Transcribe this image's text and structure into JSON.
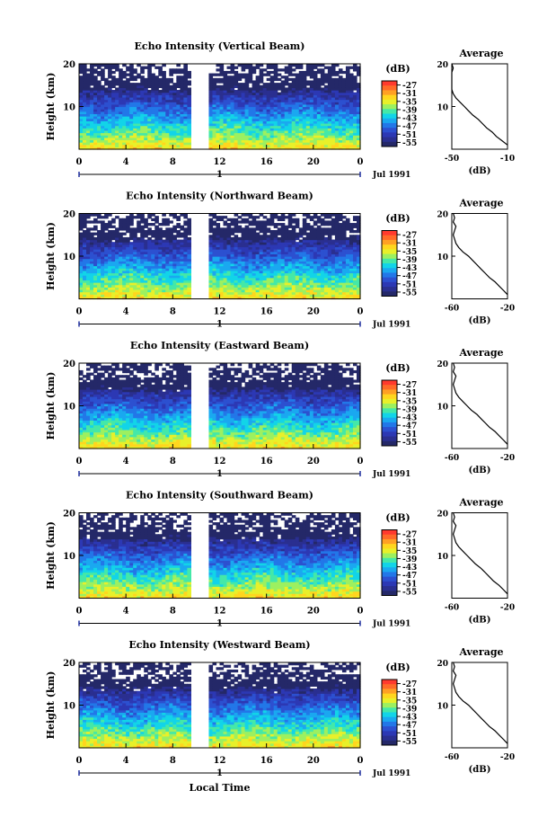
{
  "chart_data": {
    "type": "heatmap",
    "x_ticks": [
      "0",
      "4",
      "8",
      "12",
      "16",
      "20",
      "0"
    ],
    "x_tick_values": [
      0,
      4,
      8,
      12,
      16,
      20,
      24
    ],
    "xlim": [
      0,
      24
    ],
    "y_ticks": [
      "10",
      "20"
    ],
    "y_tick_values": [
      10,
      20
    ],
    "ylim": [
      0,
      20
    ],
    "ylabel": "Height (km)",
    "xlabel": "Local Time",
    "day_marker": "1",
    "date_label": "Jul 1991",
    "data_gap_hours": [
      9.4,
      11.0
    ],
    "colorbar": {
      "unit_label": "(dB)",
      "tick_labels": [
        "-27",
        "-31",
        "-35",
        "-39",
        "-43",
        "-47",
        "-51",
        "-55"
      ],
      "levels": [
        -27,
        -31,
        -35,
        -39,
        -43,
        -47,
        -51,
        -55
      ],
      "colors": [
        "#ff3a2e",
        "#ff6a28",
        "#ffa024",
        "#ffd61e",
        "#e8f02a",
        "#9cf060",
        "#44e8a8",
        "#12d4e8",
        "#1aa8f0",
        "#2277e8",
        "#2c50d0",
        "#2c38b4",
        "#2a2f90",
        "#242868"
      ]
    },
    "panels": [
      {
        "title": "Echo Intensity (Vertical Beam)",
        "avg_title": "Average",
        "avg_xlabel": "(dB)",
        "avg_xticks": [
          "-50",
          "-10"
        ],
        "avg_xlim": [
          -50,
          -10
        ],
        "avg_yticks": [
          "10",
          "20"
        ],
        "average_profile": {
          "height_km": [
            1,
            2,
            3,
            4,
            5,
            6,
            7,
            8,
            9,
            10,
            11,
            12,
            13,
            14,
            15,
            16,
            17,
            18,
            19,
            20
          ],
          "db": [
            -10,
            -14,
            -18,
            -21,
            -25,
            -28,
            -31,
            -35,
            -38,
            -41,
            -44,
            -47,
            -49,
            -50,
            -51,
            -52,
            -50,
            -51,
            -49,
            -50
          ]
        }
      },
      {
        "title": "Echo Intensity (Northward Beam)",
        "avg_title": "Average",
        "avg_xlabel": "(dB)",
        "avg_xticks": [
          "-60",
          "-20"
        ],
        "avg_xlim": [
          -60,
          -20
        ],
        "avg_yticks": [
          "10",
          "20"
        ],
        "average_profile": {
          "height_km": [
            1,
            2,
            3,
            4,
            5,
            6,
            7,
            8,
            9,
            10,
            11,
            12,
            13,
            14,
            15,
            16,
            17,
            18,
            19,
            20
          ],
          "db": [
            -20,
            -23,
            -26,
            -29,
            -33,
            -36,
            -39,
            -42,
            -45,
            -48,
            -52,
            -55,
            -57,
            -58,
            -59,
            -58,
            -57,
            -59,
            -58,
            -59
          ]
        }
      },
      {
        "title": "Echo Intensity (Eastward Beam)",
        "avg_title": "Average",
        "avg_xlabel": "(dB)",
        "avg_xticks": [
          "-60",
          "-20"
        ],
        "avg_xlim": [
          -60,
          -20
        ],
        "avg_yticks": [
          "10",
          "20"
        ],
        "average_profile": {
          "height_km": [
            1,
            2,
            3,
            4,
            5,
            6,
            7,
            8,
            9,
            10,
            11,
            12,
            13,
            14,
            15,
            16,
            17,
            18,
            19,
            20
          ],
          "db": [
            -20,
            -23,
            -26,
            -29,
            -33,
            -36,
            -39,
            -42,
            -46,
            -49,
            -52,
            -55,
            -57,
            -58,
            -59,
            -58,
            -57,
            -59,
            -58,
            -59
          ]
        }
      },
      {
        "title": "Echo Intensity (Southward Beam)",
        "avg_title": "Average",
        "avg_xlabel": "(dB)",
        "avg_xticks": [
          "-60",
          "-20"
        ],
        "avg_xlim": [
          -60,
          -20
        ],
        "avg_yticks": [
          "10",
          "20"
        ],
        "average_profile": {
          "height_km": [
            1,
            2,
            3,
            4,
            5,
            6,
            7,
            8,
            9,
            10,
            11,
            12,
            13,
            14,
            15,
            16,
            17,
            18,
            19,
            20
          ],
          "db": [
            -20,
            -23,
            -26,
            -30,
            -33,
            -36,
            -39,
            -43,
            -46,
            -49,
            -52,
            -55,
            -57,
            -58,
            -59,
            -58,
            -57,
            -59,
            -58,
            -59
          ]
        }
      },
      {
        "title": "Echo Intensity (Westward Beam)",
        "avg_title": "Average",
        "avg_xlabel": "(dB)",
        "avg_xticks": [
          "-60",
          "-20"
        ],
        "avg_xlim": [
          -60,
          -20
        ],
        "avg_yticks": [
          "10",
          "20"
        ],
        "average_profile": {
          "height_km": [
            1,
            2,
            3,
            4,
            5,
            6,
            7,
            8,
            9,
            10,
            11,
            12,
            13,
            14,
            15,
            16,
            17,
            18,
            19,
            20
          ],
          "db": [
            -20,
            -23,
            -26,
            -29,
            -33,
            -36,
            -39,
            -42,
            -45,
            -48,
            -52,
            -55,
            -57,
            -58,
            -59,
            -58,
            -57,
            -59,
            -58,
            -59
          ]
        }
      }
    ]
  }
}
